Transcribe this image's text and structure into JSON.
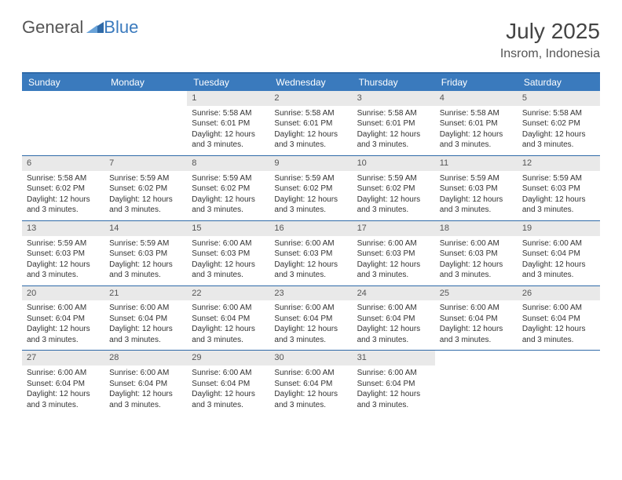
{
  "brand": {
    "part1": "General",
    "part2": "Blue"
  },
  "title": "July 2025",
  "location": "Insrom, Indonesia",
  "colors": {
    "header_bg": "#3a7abd",
    "header_text": "#ffffff",
    "rule": "#2f6aa8",
    "daynum_bg": "#e9e9e9",
    "text": "#333333"
  },
  "day_headers": [
    "Sunday",
    "Monday",
    "Tuesday",
    "Wednesday",
    "Thursday",
    "Friday",
    "Saturday"
  ],
  "weeks": [
    [
      {
        "empty": true
      },
      {
        "empty": true
      },
      {
        "day": "1",
        "sunrise": "Sunrise: 5:58 AM",
        "sunset": "Sunset: 6:01 PM",
        "daylight": "Daylight: 12 hours and 3 minutes."
      },
      {
        "day": "2",
        "sunrise": "Sunrise: 5:58 AM",
        "sunset": "Sunset: 6:01 PM",
        "daylight": "Daylight: 12 hours and 3 minutes."
      },
      {
        "day": "3",
        "sunrise": "Sunrise: 5:58 AM",
        "sunset": "Sunset: 6:01 PM",
        "daylight": "Daylight: 12 hours and 3 minutes."
      },
      {
        "day": "4",
        "sunrise": "Sunrise: 5:58 AM",
        "sunset": "Sunset: 6:01 PM",
        "daylight": "Daylight: 12 hours and 3 minutes."
      },
      {
        "day": "5",
        "sunrise": "Sunrise: 5:58 AM",
        "sunset": "Sunset: 6:02 PM",
        "daylight": "Daylight: 12 hours and 3 minutes."
      }
    ],
    [
      {
        "day": "6",
        "sunrise": "Sunrise: 5:58 AM",
        "sunset": "Sunset: 6:02 PM",
        "daylight": "Daylight: 12 hours and 3 minutes."
      },
      {
        "day": "7",
        "sunrise": "Sunrise: 5:59 AM",
        "sunset": "Sunset: 6:02 PM",
        "daylight": "Daylight: 12 hours and 3 minutes."
      },
      {
        "day": "8",
        "sunrise": "Sunrise: 5:59 AM",
        "sunset": "Sunset: 6:02 PM",
        "daylight": "Daylight: 12 hours and 3 minutes."
      },
      {
        "day": "9",
        "sunrise": "Sunrise: 5:59 AM",
        "sunset": "Sunset: 6:02 PM",
        "daylight": "Daylight: 12 hours and 3 minutes."
      },
      {
        "day": "10",
        "sunrise": "Sunrise: 5:59 AM",
        "sunset": "Sunset: 6:02 PM",
        "daylight": "Daylight: 12 hours and 3 minutes."
      },
      {
        "day": "11",
        "sunrise": "Sunrise: 5:59 AM",
        "sunset": "Sunset: 6:03 PM",
        "daylight": "Daylight: 12 hours and 3 minutes."
      },
      {
        "day": "12",
        "sunrise": "Sunrise: 5:59 AM",
        "sunset": "Sunset: 6:03 PM",
        "daylight": "Daylight: 12 hours and 3 minutes."
      }
    ],
    [
      {
        "day": "13",
        "sunrise": "Sunrise: 5:59 AM",
        "sunset": "Sunset: 6:03 PM",
        "daylight": "Daylight: 12 hours and 3 minutes."
      },
      {
        "day": "14",
        "sunrise": "Sunrise: 5:59 AM",
        "sunset": "Sunset: 6:03 PM",
        "daylight": "Daylight: 12 hours and 3 minutes."
      },
      {
        "day": "15",
        "sunrise": "Sunrise: 6:00 AM",
        "sunset": "Sunset: 6:03 PM",
        "daylight": "Daylight: 12 hours and 3 minutes."
      },
      {
        "day": "16",
        "sunrise": "Sunrise: 6:00 AM",
        "sunset": "Sunset: 6:03 PM",
        "daylight": "Daylight: 12 hours and 3 minutes."
      },
      {
        "day": "17",
        "sunrise": "Sunrise: 6:00 AM",
        "sunset": "Sunset: 6:03 PM",
        "daylight": "Daylight: 12 hours and 3 minutes."
      },
      {
        "day": "18",
        "sunrise": "Sunrise: 6:00 AM",
        "sunset": "Sunset: 6:03 PM",
        "daylight": "Daylight: 12 hours and 3 minutes."
      },
      {
        "day": "19",
        "sunrise": "Sunrise: 6:00 AM",
        "sunset": "Sunset: 6:04 PM",
        "daylight": "Daylight: 12 hours and 3 minutes."
      }
    ],
    [
      {
        "day": "20",
        "sunrise": "Sunrise: 6:00 AM",
        "sunset": "Sunset: 6:04 PM",
        "daylight": "Daylight: 12 hours and 3 minutes."
      },
      {
        "day": "21",
        "sunrise": "Sunrise: 6:00 AM",
        "sunset": "Sunset: 6:04 PM",
        "daylight": "Daylight: 12 hours and 3 minutes."
      },
      {
        "day": "22",
        "sunrise": "Sunrise: 6:00 AM",
        "sunset": "Sunset: 6:04 PM",
        "daylight": "Daylight: 12 hours and 3 minutes."
      },
      {
        "day": "23",
        "sunrise": "Sunrise: 6:00 AM",
        "sunset": "Sunset: 6:04 PM",
        "daylight": "Daylight: 12 hours and 3 minutes."
      },
      {
        "day": "24",
        "sunrise": "Sunrise: 6:00 AM",
        "sunset": "Sunset: 6:04 PM",
        "daylight": "Daylight: 12 hours and 3 minutes."
      },
      {
        "day": "25",
        "sunrise": "Sunrise: 6:00 AM",
        "sunset": "Sunset: 6:04 PM",
        "daylight": "Daylight: 12 hours and 3 minutes."
      },
      {
        "day": "26",
        "sunrise": "Sunrise: 6:00 AM",
        "sunset": "Sunset: 6:04 PM",
        "daylight": "Daylight: 12 hours and 3 minutes."
      }
    ],
    [
      {
        "day": "27",
        "sunrise": "Sunrise: 6:00 AM",
        "sunset": "Sunset: 6:04 PM",
        "daylight": "Daylight: 12 hours and 3 minutes."
      },
      {
        "day": "28",
        "sunrise": "Sunrise: 6:00 AM",
        "sunset": "Sunset: 6:04 PM",
        "daylight": "Daylight: 12 hours and 3 minutes."
      },
      {
        "day": "29",
        "sunrise": "Sunrise: 6:00 AM",
        "sunset": "Sunset: 6:04 PM",
        "daylight": "Daylight: 12 hours and 3 minutes."
      },
      {
        "day": "30",
        "sunrise": "Sunrise: 6:00 AM",
        "sunset": "Sunset: 6:04 PM",
        "daylight": "Daylight: 12 hours and 3 minutes."
      },
      {
        "day": "31",
        "sunrise": "Sunrise: 6:00 AM",
        "sunset": "Sunset: 6:04 PM",
        "daylight": "Daylight: 12 hours and 3 minutes."
      },
      {
        "empty": true
      },
      {
        "empty": true
      }
    ]
  ]
}
